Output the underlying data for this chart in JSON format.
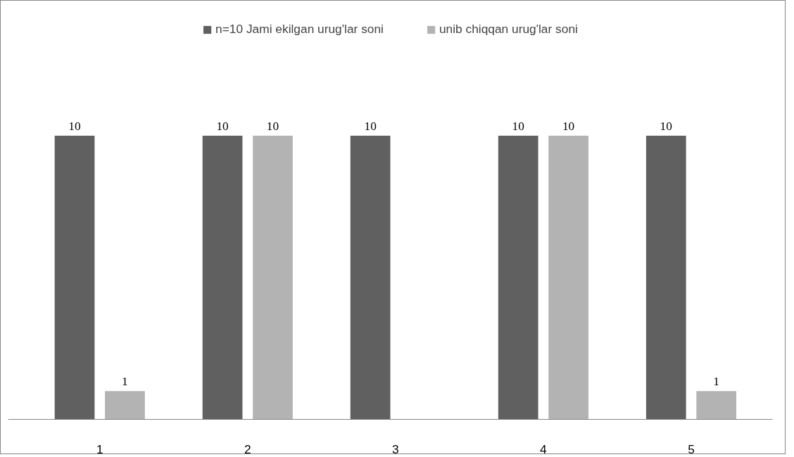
{
  "chart_data": {
    "type": "bar",
    "categories": [
      "1",
      "2",
      "3",
      "4",
      "5"
    ],
    "series": [
      {
        "name": "n=10 Jami ekilgan urug'lar soni",
        "color": "#606060",
        "values": [
          10,
          10,
          10,
          10,
          10
        ]
      },
      {
        "name": "unib chiqqan urug'lar soni",
        "color": "#b3b3b3",
        "values": [
          1,
          10,
          null,
          10,
          1
        ]
      }
    ],
    "data_labels": true,
    "grid": false,
    "legend": "top"
  }
}
